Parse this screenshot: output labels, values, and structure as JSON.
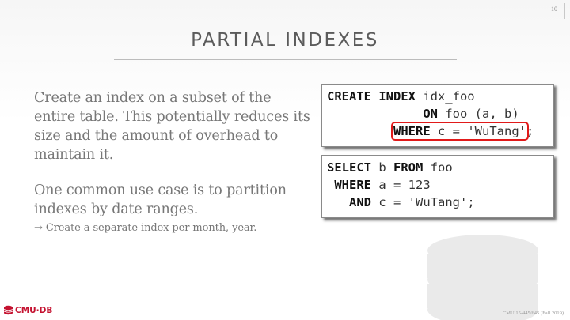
{
  "slide": {
    "number": "10",
    "title": "PARTIAL INDEXES",
    "paragraph1": "Create an index on a subset of the entire table. This potentially reduces its size and the amount of overhead to maintain it.",
    "paragraph2": "One common use case is to partition indexes by date ranges.",
    "subpoint": "→ Create a separate index per month, year."
  },
  "code_create": {
    "line1_kw": "CREATE INDEX",
    "line1_rest": " idx_foo",
    "line2_indent": "             ",
    "line2_kw": "ON",
    "line2_rest": " foo (a, b)",
    "line3_indent": "         ",
    "line3_kw": "WHERE",
    "line3_rest": " c = 'WuTang'",
    "line3_end": ";"
  },
  "code_select": {
    "line1_kw1": "SELECT",
    "line1_mid": " b ",
    "line1_kw2": "FROM",
    "line1_rest": " foo",
    "line2_indent": " ",
    "line2_kw": "WHERE",
    "line2_rest": " a = 123",
    "line3_indent": "   ",
    "line3_kw": "AND",
    "line3_rest": " c = 'WuTang';"
  },
  "footer": {
    "logo_text": "CMU·DB",
    "course": "CMU 15-445/645 (Fall 2019)"
  },
  "colors": {
    "highlight": "#e11a1a",
    "brand": "#c41230"
  }
}
